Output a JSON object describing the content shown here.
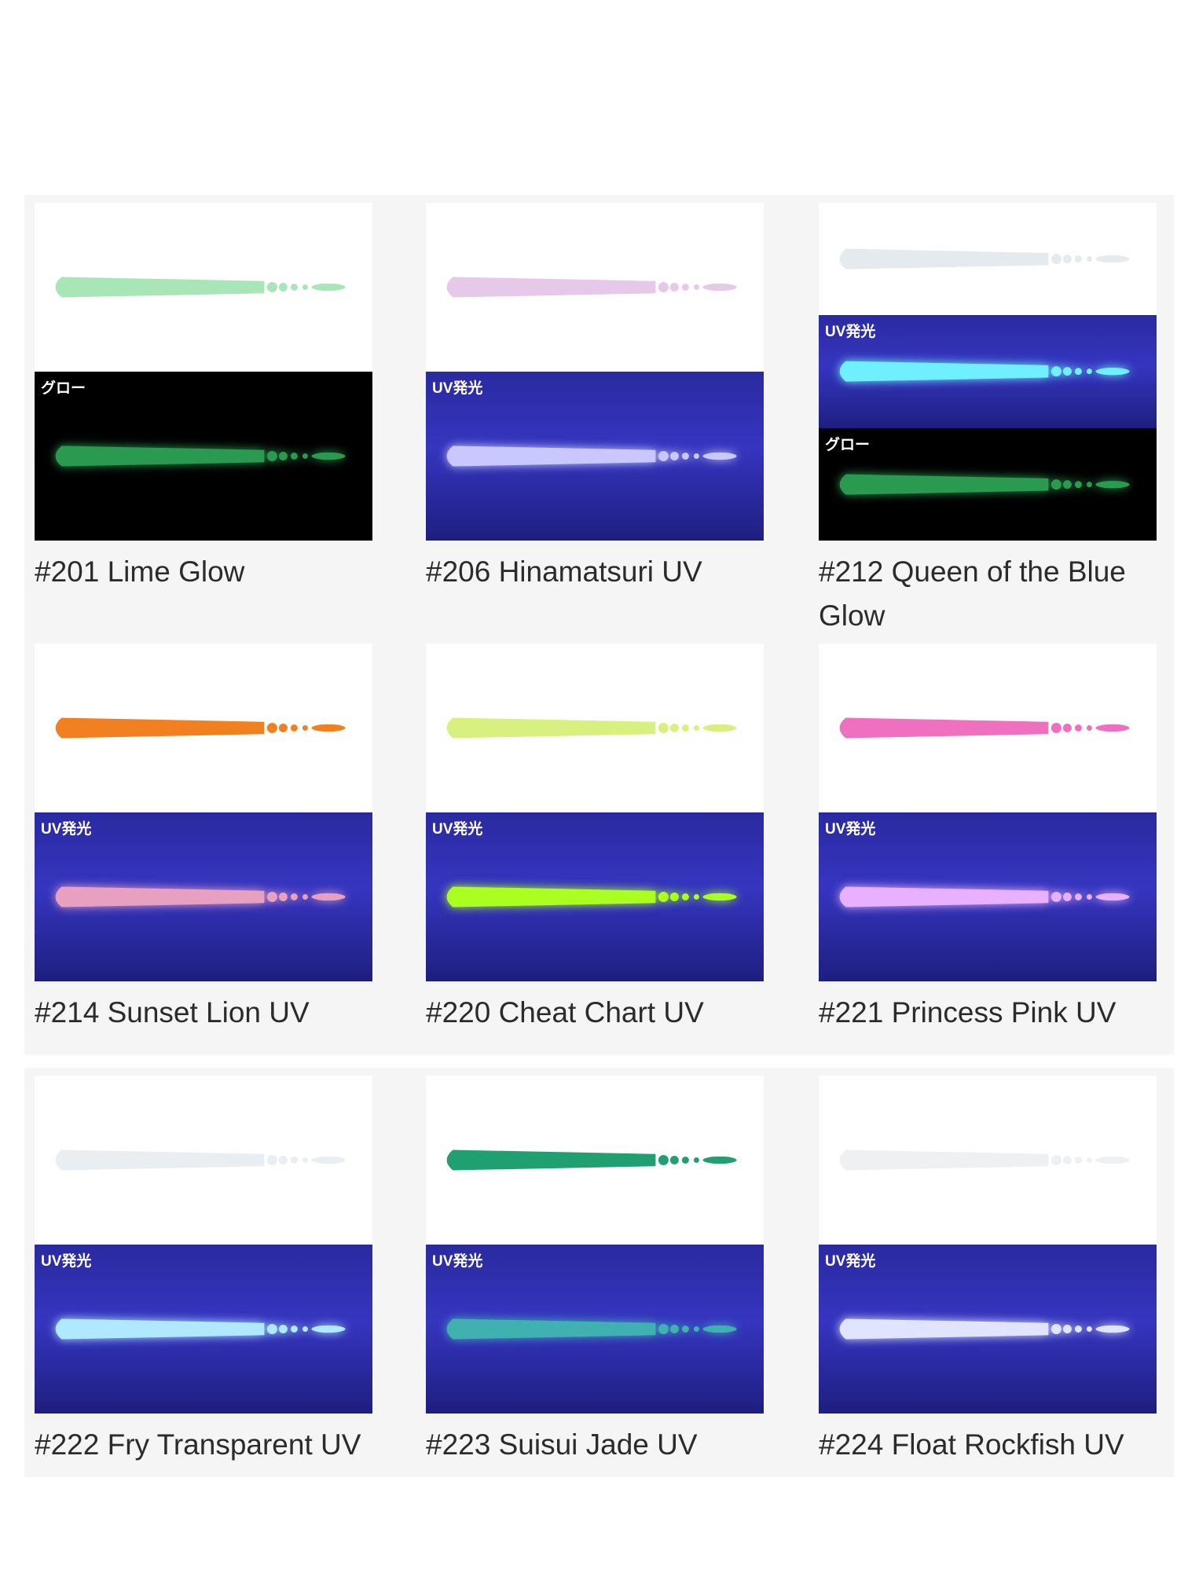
{
  "items": [
    {
      "label": "#201 Lime Glow",
      "tags": [
        "グロー"
      ]
    },
    {
      "label": "#206 Hinamatsuri UV",
      "tags": [
        "UV発光"
      ]
    },
    {
      "label": "#212 Queen of the Blue Glow",
      "tags": [
        "UV発光",
        "グロー"
      ]
    },
    {
      "label": "#214 Sunset Lion UV",
      "tags": [
        "UV発光"
      ]
    },
    {
      "label": "#220 Cheat Chart UV",
      "tags": [
        "UV発光"
      ]
    },
    {
      "label": "#221 Princess Pink UV",
      "tags": [
        "UV発光"
      ]
    },
    {
      "label": "#222 Fry Transparent UV",
      "tags": [
        "UV発光"
      ]
    },
    {
      "label": "#223 Suisui Jade UV",
      "tags": [
        "UV発光"
      ]
    },
    {
      "label": "#224 Float Rockfish UV",
      "tags": [
        "UV発光"
      ]
    }
  ]
}
